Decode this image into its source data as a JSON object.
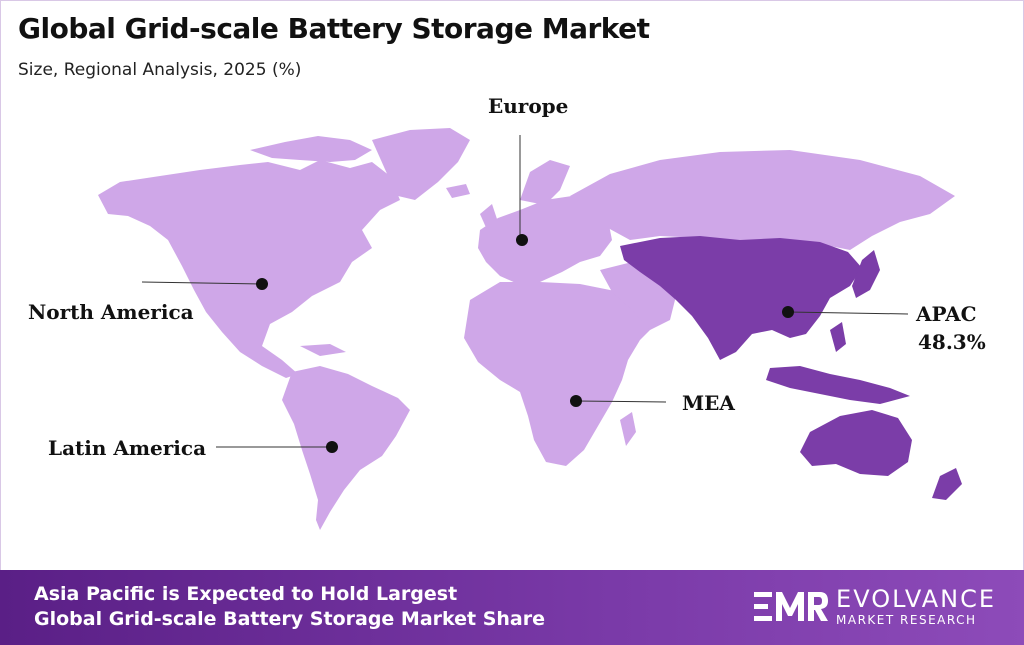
{
  "title": "Global Grid-scale Battery Storage Market",
  "subtitle": "Size, Regional Analysis, 2025 (%)",
  "regions": {
    "europe": {
      "label": "Europe"
    },
    "north_america": {
      "label": "North America"
    },
    "latin_america": {
      "label": "Latin America"
    },
    "mea": {
      "label": "MEA"
    },
    "apac": {
      "label": "APAC",
      "value": "48.3%"
    }
  },
  "colors": {
    "land": "#cfa7e8",
    "highlight": "#7b3da8",
    "footer": "#6a2d98"
  },
  "footer": {
    "line1": "Asia Pacific is Expected to Hold Largest",
    "line2": "Global Grid-scale Battery Storage Market Share"
  },
  "logo": {
    "name": "EVOLVANCE",
    "sub": "MARKET RESEARCH"
  }
}
